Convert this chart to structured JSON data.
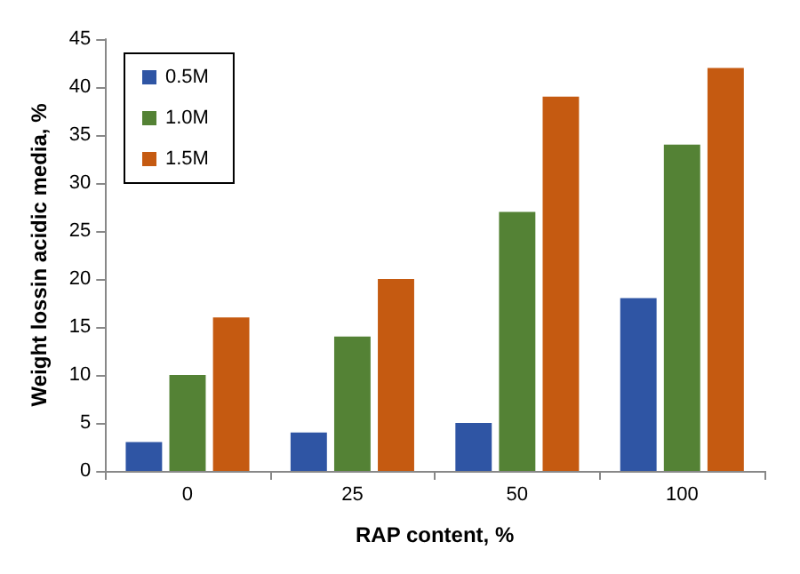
{
  "chart_data": {
    "type": "bar",
    "xlabel": "RAP content, %",
    "ylabel": "Weight lossin acidic media, %",
    "categories": [
      "0",
      "25",
      "50",
      "100"
    ],
    "series": [
      {
        "name": "0.5M",
        "color": "#2f55a4",
        "values": [
          3,
          4,
          5,
          18
        ]
      },
      {
        "name": "1.0M",
        "color": "#548235",
        "values": [
          10,
          14,
          27,
          34
        ]
      },
      {
        "name": "1.5M",
        "color": "#c55a11",
        "values": [
          16,
          20,
          39,
          42
        ]
      }
    ],
    "ylim": [
      0,
      45
    ],
    "yticks": [
      0,
      5,
      10,
      15,
      20,
      25,
      30,
      35,
      40,
      45
    ],
    "grid": false,
    "legend": "top left"
  }
}
